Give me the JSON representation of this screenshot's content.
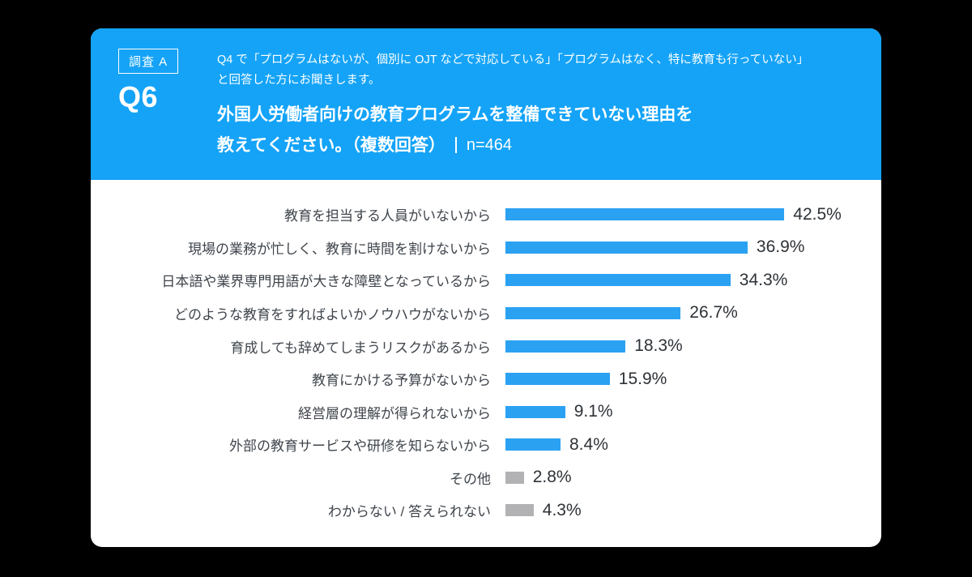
{
  "header": {
    "badge": "調査 A",
    "question_number": "Q6",
    "intro_line1": "Q4 で「プログラムはないが、個別に OJT などで対応している」「プログラムはなく、特に教育も行っていない」",
    "intro_line2": "と回答した方にお聞きします。",
    "title_line1": "外国人労働者向けの教育プログラムを整備できていない理由を",
    "title_line2": "教えてください。（複数回答）",
    "sample_size": "n=464"
  },
  "chart_data": {
    "type": "bar",
    "orientation": "horizontal",
    "title": "外国人労働者向けの教育プログラムを整備できていない理由を教えてください。（複数回答）n=464",
    "xlabel": "",
    "ylabel": "",
    "xlim": [
      0,
      45
    ],
    "grid": false,
    "legend": "none",
    "value_suffix": "%",
    "categories": [
      "教育を担当する人員がいないから",
      "現場の業務が忙しく、教育に時間を割けないから",
      "日本語や業界専門用語が大きな障壁となっているから",
      "どのような教育をすればよいかノウハウがないから",
      "育成しても辞めてしまうリスクがあるから",
      "教育にかける予算がないから",
      "経営層の理解が得られないから",
      "外部の教育サービスや研修を知らないから",
      "その他",
      "わからない / 答えられない"
    ],
    "values": [
      42.5,
      36.9,
      34.3,
      26.7,
      18.3,
      15.9,
      9.1,
      8.4,
      2.8,
      4.3
    ],
    "bar_colors": [
      "#2ba1f2",
      "#2ba1f2",
      "#2ba1f2",
      "#2ba1f2",
      "#2ba1f2",
      "#2ba1f2",
      "#2ba1f2",
      "#2ba1f2",
      "#b2b2b5",
      "#b2b2b5"
    ]
  },
  "colors": {
    "header_blue": "#14a3f7",
    "bar_blue": "#2ba1f2",
    "bar_gray": "#b2b2b5",
    "card_bg": "#ffffff",
    "page_bg": "#000000"
  }
}
